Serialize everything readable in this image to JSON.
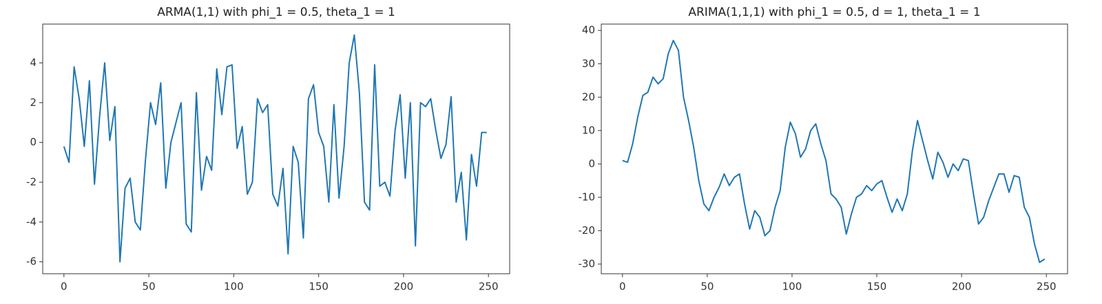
{
  "chart_data": [
    {
      "type": "line",
      "title": "ARMA(1,1) with phi_1 = 0.5, theta_1 = 1",
      "x": [
        0,
        3,
        6,
        9,
        12,
        15,
        18,
        21,
        24,
        27,
        30,
        33,
        36,
        39,
        42,
        45,
        48,
        51,
        54,
        57,
        60,
        63,
        66,
        69,
        72,
        75,
        78,
        81,
        84,
        87,
        90,
        93,
        96,
        99,
        102,
        105,
        108,
        111,
        114,
        117,
        120,
        123,
        126,
        129,
        132,
        135,
        138,
        141,
        144,
        147,
        150,
        153,
        156,
        159,
        162,
        165,
        168,
        171,
        174,
        177,
        180,
        183,
        186,
        189,
        192,
        195,
        198,
        201,
        204,
        207,
        210,
        213,
        216,
        219,
        222,
        225,
        228,
        231,
        234,
        237,
        240,
        243,
        246,
        249
      ],
      "series": [
        {
          "color": "#1f77b4",
          "values": [
            -0.2,
            -1.0,
            3.8,
            2.2,
            -0.2,
            3.1,
            -2.1,
            1.3,
            4.0,
            0.1,
            1.8,
            -6.0,
            -2.3,
            -1.8,
            -4.0,
            -4.4,
            -0.9,
            2.0,
            0.9,
            3.0,
            -2.3,
            0.0,
            1.0,
            2.0,
            -4.1,
            -4.5,
            2.5,
            -2.4,
            -0.7,
            -1.4,
            3.7,
            1.4,
            3.8,
            3.9,
            -0.3,
            0.8,
            -2.6,
            -2.0,
            2.2,
            1.5,
            1.9,
            -2.6,
            -3.2,
            -1.3,
            -5.6,
            -0.2,
            -1.0,
            -4.8,
            2.2,
            2.9,
            0.5,
            -0.2,
            -3.0,
            1.9,
            -2.8,
            -0.2,
            4.0,
            5.4,
            2.5,
            -3.0,
            -3.4,
            3.9,
            -2.2,
            -2.0,
            -2.7,
            0.6,
            2.4,
            -1.8,
            2.0,
            -5.2,
            2.0,
            1.8,
            2.2,
            0.6,
            -0.8,
            -0.1,
            2.3,
            -3.0,
            -1.5,
            -4.9,
            -0.6,
            -2.2,
            0.5,
            0.5
          ]
        }
      ],
      "xlim": [
        -12.5,
        262.5
      ],
      "xticks": [
        0,
        50,
        100,
        150,
        200,
        250
      ],
      "ylim": [
        -6.6,
        5.95
      ],
      "yticks": [
        -6,
        -4,
        -2,
        0,
        2,
        4
      ]
    },
    {
      "type": "line",
      "title": "ARIMA(1,1,1) with phi_1 = 0.5, d = 1, theta_1 = 1",
      "x": [
        0,
        3,
        6,
        9,
        12,
        15,
        18,
        21,
        24,
        27,
        30,
        33,
        36,
        39,
        42,
        45,
        48,
        51,
        54,
        57,
        60,
        63,
        66,
        69,
        72,
        75,
        78,
        81,
        84,
        87,
        90,
        93,
        96,
        99,
        102,
        105,
        108,
        111,
        114,
        117,
        120,
        123,
        126,
        129,
        132,
        135,
        138,
        141,
        144,
        147,
        150,
        153,
        156,
        159,
        162,
        165,
        168,
        171,
        174,
        177,
        180,
        183,
        186,
        189,
        192,
        195,
        198,
        201,
        204,
        207,
        210,
        213,
        216,
        219,
        222,
        225,
        228,
        231,
        234,
        237,
        240,
        243,
        246,
        249
      ],
      "series": [
        {
          "color": "#1f77b4",
          "values": [
            1,
            0.5,
            6,
            14,
            20.5,
            21.5,
            26,
            24,
            25.5,
            33,
            37,
            34,
            20,
            13,
            5,
            -5,
            -12,
            -14,
            -10,
            -7,
            -3,
            -6.5,
            -4,
            -3,
            -12,
            -19.5,
            -14,
            -16,
            -21.5,
            -20,
            -13,
            -8,
            5,
            12.5,
            9,
            2,
            4.5,
            10,
            12,
            6,
            1,
            -9,
            -10.5,
            -13,
            -21,
            -15,
            -10,
            -9,
            -6.5,
            -8,
            -6,
            -5,
            -10,
            -14.5,
            -10.5,
            -14,
            -9,
            4,
            13,
            7,
            1,
            -4.5,
            3.5,
            0.5,
            -4,
            0,
            -2,
            1.5,
            1,
            -9,
            -18,
            -16,
            -11,
            -7,
            -3,
            -3,
            -8.5,
            -3.5,
            -4,
            -13,
            -16,
            -24,
            -29.5,
            -28.5
          ]
        }
      ],
      "xlim": [
        -12.5,
        262.5
      ],
      "xticks": [
        0,
        50,
        100,
        150,
        200,
        250
      ],
      "ylim": [
        -32.9,
        41.9
      ],
      "yticks": [
        -30,
        -20,
        -10,
        0,
        10,
        20,
        30,
        40
      ]
    }
  ]
}
